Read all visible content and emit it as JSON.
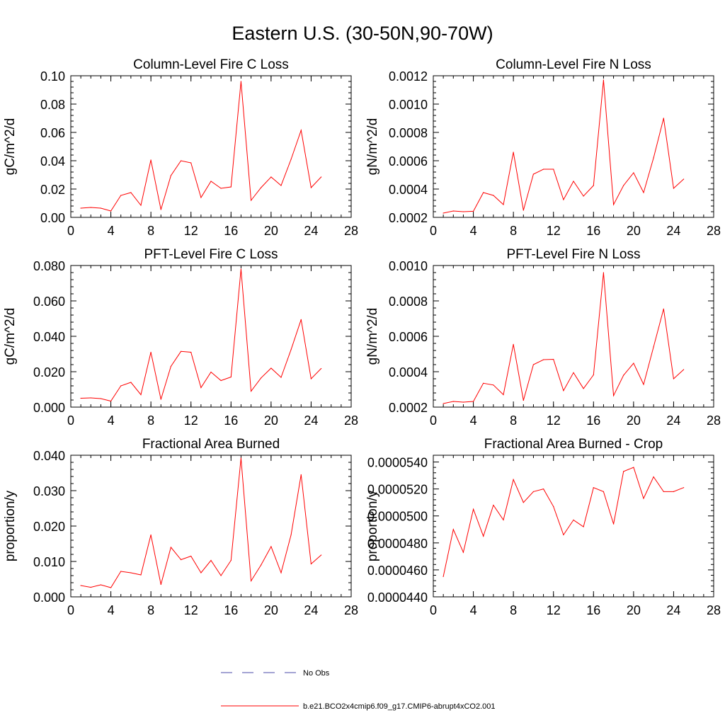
{
  "title": "Eastern U.S. (30-50N,90-70W)",
  "legend": {
    "entries": [
      {
        "label": "No Obs",
        "style": "dashed",
        "color": "#4a4aa8"
      },
      {
        "label": "b.e21.BCO2x4cmip6.f09_g17.CMIP6-abrupt4xCO2.001",
        "style": "solid",
        "color": "#ff0000"
      }
    ]
  },
  "chart_data": [
    {
      "type": "line",
      "title": "Column-Level Fire C Loss",
      "ylabel": "gC/m^2/d",
      "xlim": [
        0,
        28
      ],
      "ylim": [
        0,
        0.1
      ],
      "xticks": [
        0,
        4,
        8,
        12,
        16,
        20,
        24,
        28
      ],
      "xtick_labels": [
        "0",
        "4",
        "8",
        "12",
        "16",
        "20",
        "24",
        "28"
      ],
      "yticks": [
        0,
        0.02,
        0.04,
        0.06,
        0.08,
        0.1
      ],
      "ytick_labels": [
        "0.00",
        "0.02",
        "0.04",
        "0.06",
        "0.08",
        "0.10"
      ],
      "x": [
        1,
        2,
        3,
        4,
        5,
        6,
        7,
        8,
        9,
        10,
        11,
        12,
        13,
        14,
        15,
        16,
        17,
        18,
        19,
        20,
        21,
        22,
        23,
        24,
        25
      ],
      "values": [
        0.0065,
        0.007,
        0.0065,
        0.0045,
        0.0155,
        0.0175,
        0.0085,
        0.0405,
        0.0055,
        0.0295,
        0.04,
        0.0385,
        0.014,
        0.0255,
        0.0205,
        0.0215,
        0.096,
        0.012,
        0.021,
        0.0285,
        0.0225,
        0.041,
        0.0615,
        0.021,
        0.0285
      ],
      "color": "#ff0000"
    },
    {
      "type": "line",
      "title": "Column-Level Fire N Loss",
      "ylabel": "gN/m^2/d",
      "xlim": [
        0,
        28
      ],
      "ylim": [
        0.0002,
        0.0012
      ],
      "xticks": [
        0,
        4,
        8,
        12,
        16,
        20,
        24,
        28
      ],
      "xtick_labels": [
        "0",
        "4",
        "8",
        "12",
        "16",
        "20",
        "24",
        "28"
      ],
      "yticks": [
        0.0002,
        0.0004,
        0.0006,
        0.0008,
        0.001,
        0.0012
      ],
      "ytick_labels": [
        "0.0002",
        "0.0004",
        "0.0006",
        "0.0008",
        "0.0010",
        "0.0012"
      ],
      "x": [
        1,
        2,
        3,
        4,
        5,
        6,
        7,
        8,
        9,
        10,
        11,
        12,
        13,
        14,
        15,
        16,
        17,
        18,
        19,
        20,
        21,
        22,
        23,
        24,
        25
      ],
      "values": [
        0.00023,
        0.000245,
        0.00024,
        0.000243,
        0.000375,
        0.000355,
        0.00029,
        0.00066,
        0.00025,
        0.000505,
        0.00054,
        0.00054,
        0.000325,
        0.000455,
        0.00035,
        0.000425,
        0.00117,
        0.00029,
        0.000425,
        0.000515,
        0.000375,
        0.00062,
        0.0009,
        0.000405,
        0.00047
      ],
      "color": "#ff0000"
    },
    {
      "type": "line",
      "title": "PFT-Level Fire C Loss",
      "ylabel": "gC/m^2/d",
      "xlim": [
        0,
        28
      ],
      "ylim": [
        0,
        0.08
      ],
      "xticks": [
        0,
        4,
        8,
        12,
        16,
        20,
        24,
        28
      ],
      "xtick_labels": [
        "0",
        "4",
        "8",
        "12",
        "16",
        "20",
        "24",
        "28"
      ],
      "yticks": [
        0,
        0.02,
        0.04,
        0.06,
        0.08
      ],
      "ytick_labels": [
        "0.000",
        "0.020",
        "0.040",
        "0.060",
        "0.080"
      ],
      "x": [
        1,
        2,
        3,
        4,
        5,
        6,
        7,
        8,
        9,
        10,
        11,
        12,
        13,
        14,
        15,
        16,
        17,
        18,
        19,
        20,
        21,
        22,
        23,
        24,
        25
      ],
      "values": [
        0.005,
        0.0052,
        0.0048,
        0.0034,
        0.012,
        0.014,
        0.007,
        0.031,
        0.0044,
        0.023,
        0.0315,
        0.031,
        0.011,
        0.0198,
        0.015,
        0.017,
        0.078,
        0.009,
        0.0165,
        0.022,
        0.0168,
        0.0325,
        0.0495,
        0.016,
        0.0218
      ],
      "color": "#ff0000"
    },
    {
      "type": "line",
      "title": "PFT-Level Fire N Loss",
      "ylabel": "gN/m^2/d",
      "xlim": [
        0,
        28
      ],
      "ylim": [
        0.0002,
        0.001
      ],
      "xticks": [
        0,
        4,
        8,
        12,
        16,
        20,
        24,
        28
      ],
      "xtick_labels": [
        "0",
        "4",
        "8",
        "12",
        "16",
        "20",
        "24",
        "28"
      ],
      "yticks": [
        0.0002,
        0.0004,
        0.0006,
        0.0008,
        0.001
      ],
      "ytick_labels": [
        "0.0002",
        "0.0004",
        "0.0006",
        "0.0008",
        "0.0010"
      ],
      "x": [
        1,
        2,
        3,
        4,
        5,
        6,
        7,
        8,
        9,
        10,
        11,
        12,
        13,
        14,
        15,
        16,
        17,
        18,
        19,
        20,
        21,
        22,
        23,
        24,
        25
      ],
      "values": [
        0.00022,
        0.000232,
        0.000228,
        0.000232,
        0.000335,
        0.000325,
        0.00027,
        0.000555,
        0.000238,
        0.00044,
        0.000468,
        0.00047,
        0.000293,
        0.000395,
        0.000305,
        0.000382,
        0.00096,
        0.000265,
        0.00038,
        0.000448,
        0.000328,
        0.00054,
        0.000755,
        0.00036,
        0.000412
      ],
      "color": "#ff0000"
    },
    {
      "type": "line",
      "title": "Fractional Area Burned",
      "ylabel": "proportion/y",
      "xlim": [
        0,
        28
      ],
      "ylim": [
        0,
        0.04
      ],
      "xticks": [
        0,
        4,
        8,
        12,
        16,
        20,
        24,
        28
      ],
      "xtick_labels": [
        "0",
        "4",
        "8",
        "12",
        "16",
        "20",
        "24",
        "28"
      ],
      "yticks": [
        0,
        0.01,
        0.02,
        0.03,
        0.04
      ],
      "ytick_labels": [
        "0.000",
        "0.010",
        "0.020",
        "0.030",
        "0.040"
      ],
      "x": [
        1,
        2,
        3,
        4,
        5,
        6,
        7,
        8,
        9,
        10,
        11,
        12,
        13,
        14,
        15,
        16,
        17,
        18,
        19,
        20,
        21,
        22,
        23,
        24,
        25
      ],
      "values": [
        0.0032,
        0.0027,
        0.0034,
        0.0026,
        0.0072,
        0.0068,
        0.0062,
        0.0175,
        0.0035,
        0.014,
        0.0105,
        0.0115,
        0.0068,
        0.0103,
        0.006,
        0.0103,
        0.0392,
        0.0045,
        0.009,
        0.0142,
        0.0068,
        0.0175,
        0.0345,
        0.0093,
        0.0118
      ],
      "color": "#ff0000"
    },
    {
      "type": "line",
      "title": "Fractional Area Burned - Crop",
      "ylabel": "proportion/y",
      "xlim": [
        0,
        28
      ],
      "ylim": [
        4.4e-05,
        5.45e-05
      ],
      "xticks": [
        0,
        4,
        8,
        12,
        16,
        20,
        24,
        28
      ],
      "xtick_labels": [
        "0",
        "4",
        "8",
        "12",
        "16",
        "20",
        "24",
        "28"
      ],
      "yticks": [
        4.4e-05,
        4.6e-05,
        4.8e-05,
        5e-05,
        5.2e-05,
        5.4e-05
      ],
      "ytick_labels": [
        "0.0000440",
        "0.0000460",
        "0.0000480",
        "0.0000500",
        "0.0000520",
        "0.0000540"
      ],
      "x": [
        1,
        2,
        3,
        4,
        5,
        6,
        7,
        8,
        9,
        10,
        11,
        12,
        13,
        14,
        15,
        16,
        17,
        18,
        19,
        20,
        21,
        22,
        23,
        24,
        25
      ],
      "values": [
        4.55e-05,
        4.9e-05,
        4.73e-05,
        5.05e-05,
        4.85e-05,
        5.08e-05,
        4.97e-05,
        5.27e-05,
        5.1e-05,
        5.18e-05,
        5.2e-05,
        5.07e-05,
        4.86e-05,
        4.97e-05,
        4.92e-05,
        5.21e-05,
        5.18e-05,
        4.94e-05,
        5.33e-05,
        5.36e-05,
        5.13e-05,
        5.29e-05,
        5.18e-05,
        5.18e-05,
        5.21e-05
      ],
      "color": "#ff0000"
    }
  ]
}
